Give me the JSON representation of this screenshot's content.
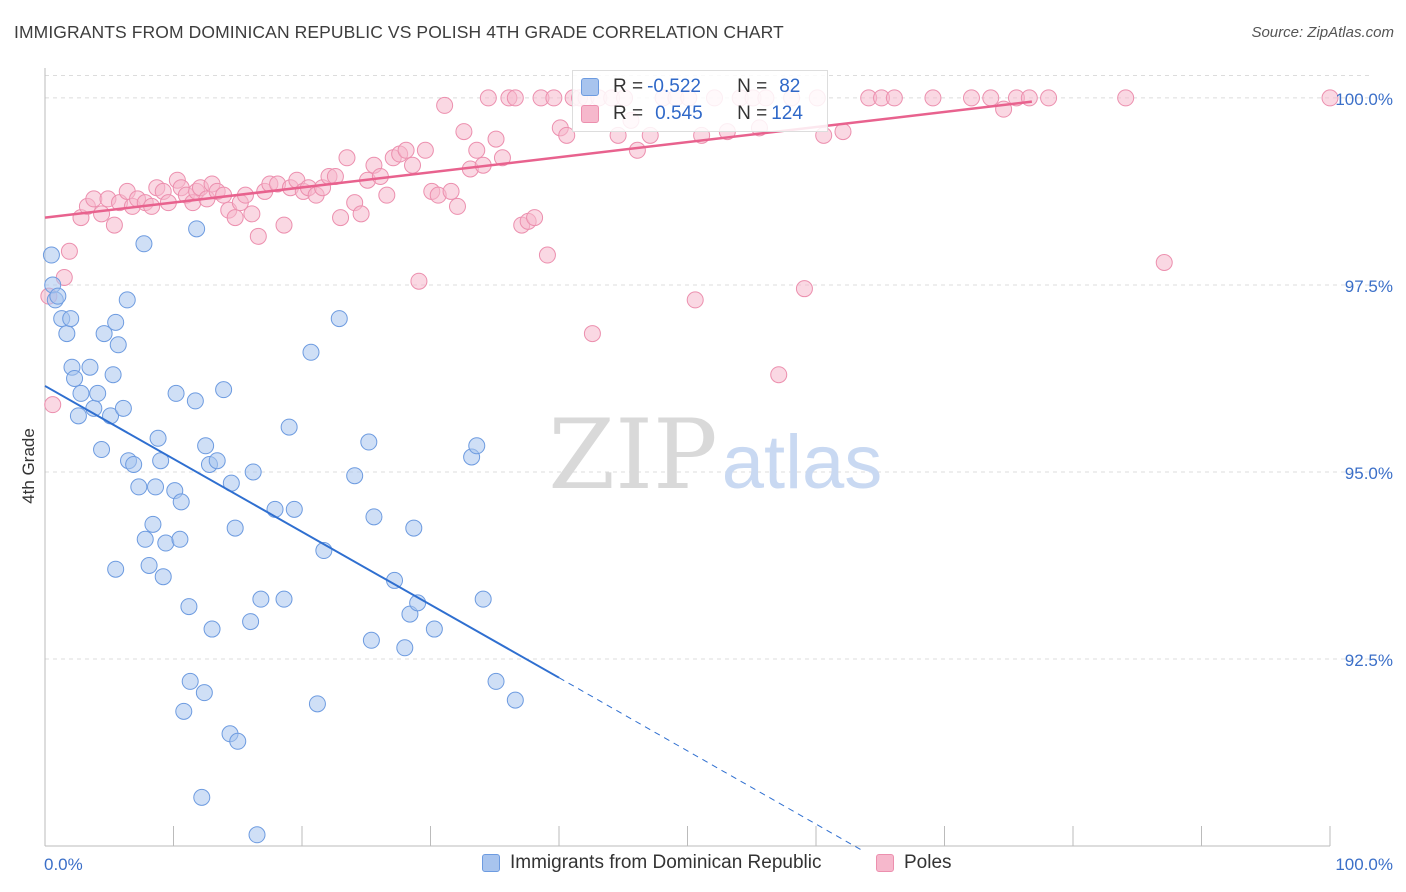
{
  "title": "IMMIGRANTS FROM DOMINICAN REPUBLIC VS POLISH 4TH GRADE CORRELATION CHART",
  "source": "Source: ZipAtlas.com",
  "watermark": {
    "zip": "ZIP",
    "atlas": "atlas"
  },
  "stats": {
    "blue": {
      "r_label": "R = ",
      "r_value": "-0.522",
      "n_label": "N = ",
      "n_value": "82"
    },
    "pink": {
      "r_label": "R = ",
      "r_value": "0.545",
      "n_label": "N = ",
      "n_value": "124"
    }
  },
  "legend": {
    "blue_label": "Immigrants from Dominican Republic",
    "pink_label": "Poles"
  },
  "colors": {
    "blue_fill": "#a8c4ee",
    "blue_stroke": "#6d9be0",
    "blue_line": "#2f6fd0",
    "pink_fill": "#f6b8cc",
    "pink_stroke": "#ec8fae",
    "pink_line": "#e8628e",
    "axis_text": "#3b6fc8"
  },
  "chart_data": {
    "type": "scatter",
    "title": "IMMIGRANTS FROM DOMINICAN REPUBLIC VS POLISH 4TH GRADE CORRELATION CHART",
    "xlabel": "",
    "ylabel": "4th Grade",
    "xlim": [
      0,
      100
    ],
    "ylim": [
      90.0,
      100.4
    ],
    "x_tick_labels": [
      "0.0%",
      "100.0%"
    ],
    "y_ticks": [
      {
        "value": 100.0,
        "label": "100.0%"
      },
      {
        "value": 97.5,
        "label": "97.5%"
      },
      {
        "value": 95.0,
        "label": "95.0%"
      },
      {
        "value": 92.5,
        "label": "92.5%"
      }
    ],
    "grid": true,
    "legend_position": "bottom-center",
    "series": [
      {
        "name": "Immigrants from Dominican Republic",
        "color": "#a8c4ee",
        "trend": {
          "x0": 0,
          "y0": 96.15,
          "x1": 40.0,
          "y1": 92.25,
          "dash_to_x": 63.5,
          "dash_to_y": 89.95
        },
        "points": [
          [
            0.5,
            97.9
          ],
          [
            0.6,
            97.5
          ],
          [
            0.8,
            97.3
          ],
          [
            1.3,
            97.05
          ],
          [
            1.7,
            96.85
          ],
          [
            2.1,
            96.4
          ],
          [
            2.3,
            96.25
          ],
          [
            2.6,
            95.75
          ],
          [
            2.8,
            96.05
          ],
          [
            3.5,
            96.4
          ],
          [
            3.8,
            95.85
          ],
          [
            4.1,
            96.05
          ],
          [
            4.4,
            95.3
          ],
          [
            4.6,
            96.85
          ],
          [
            5.1,
            95.75
          ],
          [
            5.3,
            96.3
          ],
          [
            5.5,
            97.0
          ],
          [
            5.7,
            96.7
          ],
          [
            6.1,
            95.85
          ],
          [
            6.4,
            97.3
          ],
          [
            6.5,
            95.15
          ],
          [
            6.9,
            95.1
          ],
          [
            7.3,
            94.8
          ],
          [
            7.7,
            98.05
          ],
          [
            7.8,
            94.1
          ],
          [
            8.1,
            93.75
          ],
          [
            8.4,
            94.3
          ],
          [
            8.6,
            94.8
          ],
          [
            8.8,
            95.45
          ],
          [
            9.0,
            95.15
          ],
          [
            9.4,
            94.05
          ],
          [
            10.1,
            94.75
          ],
          [
            10.2,
            96.05
          ],
          [
            10.5,
            94.1
          ],
          [
            10.6,
            94.6
          ],
          [
            10.8,
            91.8
          ],
          [
            11.2,
            93.2
          ],
          [
            11.3,
            92.2
          ],
          [
            11.7,
            95.95
          ],
          [
            11.8,
            98.25
          ],
          [
            12.2,
            90.65
          ],
          [
            12.4,
            92.05
          ],
          [
            12.5,
            95.35
          ],
          [
            12.8,
            95.1
          ],
          [
            13.0,
            92.9
          ],
          [
            13.4,
            95.15
          ],
          [
            13.9,
            96.1
          ],
          [
            14.4,
            91.5
          ],
          [
            14.5,
            94.85
          ],
          [
            14.8,
            94.25
          ],
          [
            15.0,
            91.4
          ],
          [
            16.2,
            95.0
          ],
          [
            16.5,
            90.15
          ],
          [
            16.8,
            93.3
          ],
          [
            17.9,
            94.5
          ],
          [
            18.6,
            93.3
          ],
          [
            19.0,
            95.6
          ],
          [
            19.4,
            94.5
          ],
          [
            20.7,
            96.6
          ],
          [
            21.2,
            91.9
          ],
          [
            21.7,
            93.95
          ],
          [
            22.9,
            97.05
          ],
          [
            24.1,
            94.95
          ],
          [
            25.2,
            95.4
          ],
          [
            25.4,
            92.75
          ],
          [
            25.6,
            94.4
          ],
          [
            27.2,
            93.55
          ],
          [
            28.0,
            92.65
          ],
          [
            28.4,
            93.1
          ],
          [
            28.7,
            94.25
          ],
          [
            29.0,
            93.25
          ],
          [
            30.3,
            92.9
          ],
          [
            33.2,
            95.2
          ],
          [
            33.6,
            95.35
          ],
          [
            34.1,
            93.3
          ],
          [
            35.1,
            92.2
          ],
          [
            36.6,
            91.95
          ],
          [
            1.0,
            97.35
          ],
          [
            2.0,
            97.05
          ],
          [
            5.5,
            93.7
          ],
          [
            16.0,
            93.0
          ],
          [
            9.2,
            93.6
          ]
        ]
      },
      {
        "name": "Poles",
        "color": "#f6b8cc",
        "trend": {
          "x0": 0,
          "y0": 98.4,
          "x1": 76.8,
          "y1": 99.95
        },
        "points": [
          [
            0.3,
            97.35
          ],
          [
            0.6,
            95.9
          ],
          [
            1.5,
            97.6
          ],
          [
            1.9,
            97.95
          ],
          [
            2.8,
            98.4
          ],
          [
            3.3,
            98.55
          ],
          [
            3.8,
            98.65
          ],
          [
            4.4,
            98.45
          ],
          [
            4.9,
            98.65
          ],
          [
            5.4,
            98.3
          ],
          [
            5.8,
            98.6
          ],
          [
            6.4,
            98.75
          ],
          [
            6.8,
            98.55
          ],
          [
            7.2,
            98.65
          ],
          [
            7.8,
            98.6
          ],
          [
            8.3,
            98.55
          ],
          [
            8.7,
            98.8
          ],
          [
            9.2,
            98.75
          ],
          [
            9.6,
            98.6
          ],
          [
            10.3,
            98.9
          ],
          [
            10.6,
            98.8
          ],
          [
            11.0,
            98.7
          ],
          [
            11.5,
            98.6
          ],
          [
            11.8,
            98.75
          ],
          [
            12.1,
            98.8
          ],
          [
            12.6,
            98.65
          ],
          [
            13.0,
            98.85
          ],
          [
            13.4,
            98.75
          ],
          [
            13.9,
            98.7
          ],
          [
            14.3,
            98.5
          ],
          [
            14.8,
            98.4
          ],
          [
            15.2,
            98.6
          ],
          [
            15.6,
            98.7
          ],
          [
            16.1,
            98.45
          ],
          [
            16.6,
            98.15
          ],
          [
            17.1,
            98.75
          ],
          [
            17.5,
            98.85
          ],
          [
            18.1,
            98.85
          ],
          [
            18.6,
            98.3
          ],
          [
            19.1,
            98.8
          ],
          [
            19.6,
            98.9
          ],
          [
            20.1,
            98.75
          ],
          [
            20.5,
            98.8
          ],
          [
            21.1,
            98.7
          ],
          [
            21.6,
            98.8
          ],
          [
            22.1,
            98.95
          ],
          [
            22.6,
            98.95
          ],
          [
            23.0,
            98.4
          ],
          [
            23.5,
            99.2
          ],
          [
            24.1,
            98.6
          ],
          [
            24.6,
            98.45
          ],
          [
            25.1,
            98.9
          ],
          [
            25.6,
            99.1
          ],
          [
            26.1,
            98.95
          ],
          [
            26.6,
            98.7
          ],
          [
            27.1,
            99.2
          ],
          [
            27.6,
            99.25
          ],
          [
            28.1,
            99.3
          ],
          [
            28.6,
            99.1
          ],
          [
            29.1,
            97.55
          ],
          [
            29.6,
            99.3
          ],
          [
            30.1,
            98.75
          ],
          [
            30.6,
            98.7
          ],
          [
            31.1,
            99.9
          ],
          [
            31.6,
            98.75
          ],
          [
            32.1,
            98.55
          ],
          [
            32.6,
            99.55
          ],
          [
            33.1,
            99.05
          ],
          [
            33.6,
            99.3
          ],
          [
            34.1,
            99.1
          ],
          [
            34.5,
            100.0
          ],
          [
            35.1,
            99.45
          ],
          [
            35.6,
            99.2
          ],
          [
            36.1,
            100.0
          ],
          [
            36.6,
            100.0
          ],
          [
            37.1,
            98.3
          ],
          [
            37.6,
            98.35
          ],
          [
            38.1,
            98.4
          ],
          [
            38.6,
            100.0
          ],
          [
            39.1,
            97.9
          ],
          [
            39.6,
            100.0
          ],
          [
            40.1,
            99.6
          ],
          [
            40.6,
            99.5
          ],
          [
            41.1,
            100.0
          ],
          [
            41.6,
            100.0
          ],
          [
            42.1,
            100.0
          ],
          [
            42.6,
            96.85
          ],
          [
            43.1,
            100.0
          ],
          [
            44.1,
            100.0
          ],
          [
            44.6,
            99.5
          ],
          [
            45.1,
            100.0
          ],
          [
            46.1,
            99.3
          ],
          [
            47.1,
            99.5
          ],
          [
            48.1,
            100.0
          ],
          [
            49.1,
            100.0
          ],
          [
            50.1,
            100.0
          ],
          [
            51.1,
            99.5
          ],
          [
            52.1,
            100.0
          ],
          [
            53.1,
            99.55
          ],
          [
            54.1,
            100.0
          ],
          [
            55.1,
            100.0
          ],
          [
            56.1,
            100.0
          ],
          [
            57.1,
            96.3
          ],
          [
            58.1,
            100.0
          ],
          [
            59.1,
            97.45
          ],
          [
            60.1,
            100.0
          ],
          [
            62.1,
            99.55
          ],
          [
            64.1,
            100.0
          ],
          [
            65.1,
            100.0
          ],
          [
            66.1,
            100.0
          ],
          [
            69.1,
            100.0
          ],
          [
            72.1,
            100.0
          ],
          [
            73.6,
            100.0
          ],
          [
            74.6,
            99.85
          ],
          [
            75.6,
            100.0
          ],
          [
            76.6,
            100.0
          ],
          [
            78.1,
            100.0
          ],
          [
            84.1,
            100.0
          ],
          [
            87.1,
            97.8
          ],
          [
            100.0,
            100.0
          ],
          [
            50.6,
            97.3
          ],
          [
            45.6,
            99.7
          ],
          [
            55.6,
            99.6
          ],
          [
            60.6,
            99.5
          ]
        ]
      }
    ]
  }
}
